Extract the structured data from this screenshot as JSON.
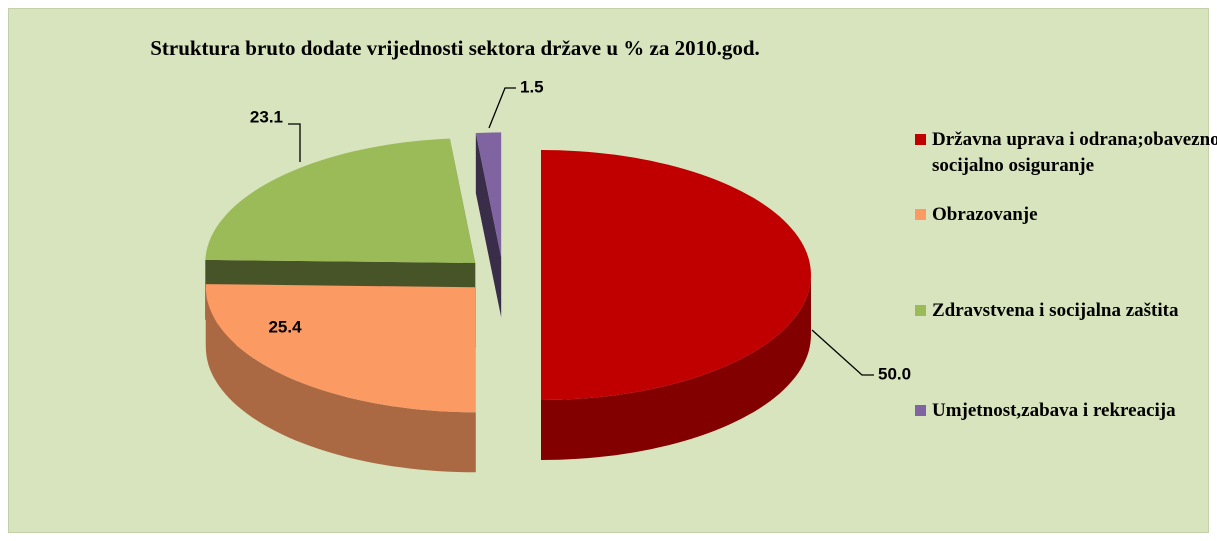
{
  "chart_data": {
    "type": "pie",
    "title": "Struktura bruto dodate vrijednosti sektora države u % za 2010.god.",
    "categories": [
      "Državna uprava i odrana;obavezno socijalno osiguranje",
      "Obrazovanje",
      "Zdravstvena i socijalna zaštita",
      "Umjetnost,zabava i rekreacija"
    ],
    "values": [
      50.0,
      25.4,
      23.1,
      1.5
    ],
    "value_labels": [
      "50.0",
      "25.4",
      "23.1",
      "1.5"
    ],
    "colors": [
      "#c00000",
      "#fb9a63",
      "#9bbb59",
      "#8064a2"
    ],
    "legend": "right"
  }
}
